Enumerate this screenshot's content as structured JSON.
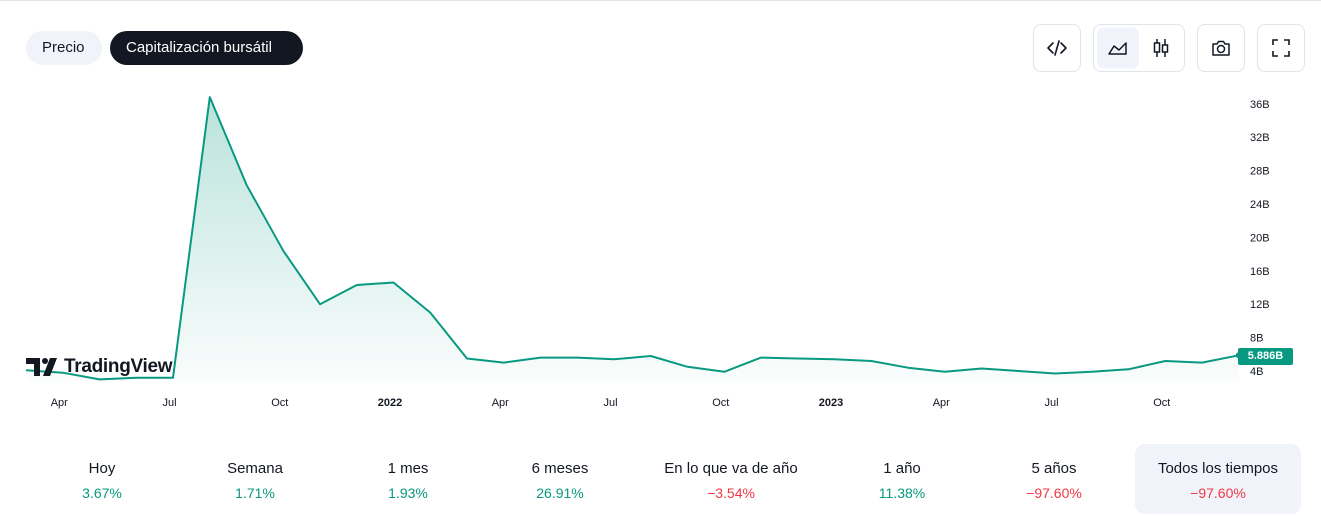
{
  "tabs": [
    {
      "label": "Precio",
      "active": false
    },
    {
      "label": "Capitalización bursátil",
      "active": true
    }
  ],
  "toolbar": {
    "embed_icon": "code-icon",
    "area_icon": "area-chart-icon",
    "candle_icon": "candlestick-icon",
    "snapshot_icon": "camera-icon",
    "fullscreen_icon": "fullscreen-icon"
  },
  "brand": {
    "name": "TradingView"
  },
  "colors": {
    "line": "#089981",
    "positive": "#089981",
    "negative": "#f23645"
  },
  "chart_data": {
    "type": "area",
    "x": [
      "2021-03",
      "2021-04",
      "2021-05",
      "2021-06",
      "2021-07",
      "2021-08",
      "2021-09",
      "2021-10",
      "2021-11",
      "2021-12",
      "2022-01",
      "2022-02",
      "2022-03",
      "2022-04",
      "2022-05",
      "2022-06",
      "2022-07",
      "2022-08",
      "2022-09",
      "2022-10",
      "2022-11",
      "2022-12",
      "2023-01",
      "2023-02",
      "2023-03",
      "2023-04",
      "2023-05",
      "2023-06",
      "2023-07",
      "2023-08",
      "2023-09",
      "2023-10",
      "2023-11",
      "2023-12"
    ],
    "series": [
      {
        "values": [
          4.1,
          3.8,
          3.0,
          3.2,
          3.2,
          36.8,
          26.3,
          18.4,
          12.0,
          14.3,
          14.6,
          11.0,
          5.5,
          5.0,
          5.6,
          5.6,
          5.4,
          5.8,
          4.5,
          3.9,
          5.6,
          5.5,
          5.4,
          5.2,
          4.4,
          3.9,
          4.3,
          4.0,
          3.7,
          3.9,
          4.2,
          5.2,
          5.0,
          5.886
        ]
      }
    ],
    "y_ticks": [
      "36B",
      "32B",
      "28B",
      "24B",
      "20B",
      "16B",
      "12B",
      "8B",
      "4B"
    ],
    "ylim": [
      4,
      36
    ],
    "x_ticks": [
      {
        "label": "Apr",
        "at": "2021-04",
        "bold": false
      },
      {
        "label": "Jul",
        "at": "2021-07",
        "bold": false
      },
      {
        "label": "Oct",
        "at": "2021-10",
        "bold": false
      },
      {
        "label": "2022",
        "at": "2022-01",
        "bold": true
      },
      {
        "label": "Apr",
        "at": "2022-04",
        "bold": false
      },
      {
        "label": "Jul",
        "at": "2022-07",
        "bold": false
      },
      {
        "label": "Oct",
        "at": "2022-10",
        "bold": false
      },
      {
        "label": "2023",
        "at": "2023-01",
        "bold": true
      },
      {
        "label": "Apr",
        "at": "2023-04",
        "bold": false
      },
      {
        "label": "Jul",
        "at": "2023-07",
        "bold": false
      },
      {
        "label": "Oct",
        "at": "2023-10",
        "bold": false
      }
    ],
    "last_value_label": "5.886B"
  },
  "performance": [
    {
      "label": "Hoy",
      "value": "3.67%",
      "sign": "pos"
    },
    {
      "label": "Semana",
      "value": "1.71%",
      "sign": "pos"
    },
    {
      "label": "1 mes",
      "value": "1.93%",
      "sign": "pos"
    },
    {
      "label": "6 meses",
      "value": "26.91%",
      "sign": "pos"
    },
    {
      "label": "En lo que va de año",
      "value": "−3.54%",
      "sign": "neg"
    },
    {
      "label": "1 año",
      "value": "11.38%",
      "sign": "pos"
    },
    {
      "label": "5 años",
      "value": "−97.60%",
      "sign": "neg"
    },
    {
      "label": "Todos los tiempos",
      "value": "−97.60%",
      "sign": "neg",
      "selected": true
    }
  ]
}
